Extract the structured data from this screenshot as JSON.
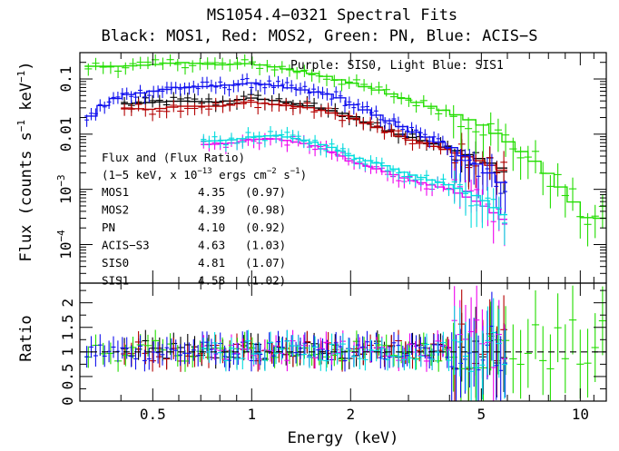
{
  "chart_data": {
    "type": "scatter",
    "title": "MS1054.4−0321 Spectral Fits",
    "subtitle": "Black: MOS1, Red: MOS2, Green: PN, Blue: ACIS−S",
    "annotation_sis": "Purple: SIS0, Light Blue: SIS1",
    "xlabel": "Energy (keV)",
    "xscale": "log",
    "xlim": [
      0.3,
      12
    ],
    "x_ticks": [
      0.5,
      1,
      2,
      5,
      10
    ],
    "x_tick_labels": [
      "0.5",
      "1",
      "2",
      "5",
      "10"
    ],
    "top_panel": {
      "ylabel": "Flux (counts s⁻¹ keV⁻¹)",
      "ylabel_main": "Flux (counts s",
      "ylabel_mid": " keV",
      "ylabel_end": ")",
      "ylabel_exp": "−1",
      "yscale": "log",
      "ylim": [
        2e-05,
        0.3
      ],
      "y_ticks": [
        0.0001,
        0.001,
        0.01,
        0.1
      ],
      "y_tick_labels": [
        {
          "text": "10",
          "sup": "−4"
        },
        {
          "text": "10",
          "sup": "−3"
        },
        {
          "text": "0.01",
          "sup": ""
        },
        {
          "text": "0.1",
          "sup": ""
        }
      ]
    },
    "bottom_panel": {
      "ylabel": "Ratio",
      "ylim": [
        0,
        2.4
      ],
      "y_ticks": [
        0,
        0.5,
        1,
        1.5,
        2
      ],
      "y_tick_labels": [
        "0",
        "0.5",
        "1",
        "1.5",
        "2"
      ],
      "reference_line": 1
    },
    "flux_table": {
      "heading": "Flux and (Flux Ratio)",
      "units_pre": "(1−5 keV, x 10",
      "units_exp1": "−13",
      "units_mid": " ergs cm",
      "units_exp2": "−2",
      "units_mid2": " s",
      "units_exp3": "−1",
      "units_end": ")",
      "rows": [
        {
          "name": "MOS1",
          "flux": "4.35",
          "ratio": "(0.97)"
        },
        {
          "name": "MOS2",
          "flux": "4.39",
          "ratio": "(0.98)"
        },
        {
          "name": "PN",
          "flux": "4.10",
          "ratio": "(0.92)"
        },
        {
          "name": "ACIS−S3",
          "flux": "4.63",
          "ratio": "(1.03)"
        },
        {
          "name": "SIS0",
          "flux": "4.81",
          "ratio": "(1.07)"
        },
        {
          "name": "SIS1",
          "flux": "4.58",
          "ratio": "(1.02)"
        }
      ]
    },
    "series": [
      {
        "id": "MOS1",
        "color": "#000000",
        "xmin": 0.4,
        "xmax": 6.0,
        "points": [
          [
            0.4,
            0.035
          ],
          [
            0.6,
            0.04
          ],
          [
            0.8,
            0.038
          ],
          [
            1.0,
            0.045
          ],
          [
            1.3,
            0.038
          ],
          [
            1.6,
            0.03
          ],
          [
            2.0,
            0.022
          ],
          [
            2.5,
            0.012
          ],
          [
            3.0,
            0.009
          ],
          [
            4.0,
            0.0055
          ],
          [
            5.0,
            0.0035
          ],
          [
            6.0,
            0.0022
          ]
        ],
        "ratio": [
          [
            0.5,
            0.95
          ],
          [
            0.8,
            1.05
          ],
          [
            1.2,
            1.0
          ],
          [
            1.8,
            0.95
          ],
          [
            2.5,
            1.1
          ],
          [
            4.0,
            1.0
          ]
        ]
      },
      {
        "id": "MOS2",
        "color": "#b40000",
        "xmin": 0.4,
        "xmax": 6.0,
        "points": [
          [
            0.4,
            0.03
          ],
          [
            0.5,
            0.028
          ],
          [
            0.6,
            0.032
          ],
          [
            0.8,
            0.032
          ],
          [
            1.0,
            0.038
          ],
          [
            1.2,
            0.034
          ],
          [
            1.5,
            0.03
          ],
          [
            2.0,
            0.02
          ],
          [
            2.5,
            0.012
          ],
          [
            3.0,
            0.008
          ],
          [
            4.0,
            0.005
          ],
          [
            5.0,
            0.0032
          ],
          [
            6.0,
            0.002
          ]
        ],
        "ratio": [
          [
            0.45,
            0.9
          ],
          [
            0.55,
            1.0
          ],
          [
            0.7,
            0.85
          ],
          [
            1.0,
            1.1
          ],
          [
            1.5,
            1.0
          ],
          [
            2.2,
            0.9
          ],
          [
            3.5,
            1.05
          ]
        ]
      },
      {
        "id": "PN",
        "color": "#22dd00",
        "xmin": 0.31,
        "xmax": 12.0,
        "points": [
          [
            0.32,
            0.17
          ],
          [
            0.4,
            0.17
          ],
          [
            0.5,
            0.18
          ],
          [
            0.6,
            0.2
          ],
          [
            0.8,
            0.18
          ],
          [
            1.0,
            0.19
          ],
          [
            1.3,
            0.15
          ],
          [
            1.6,
            0.12
          ],
          [
            2.0,
            0.085
          ],
          [
            2.5,
            0.06
          ],
          [
            3.0,
            0.042
          ],
          [
            4.0,
            0.025
          ],
          [
            5.0,
            0.015
          ],
          [
            6.0,
            0.0075
          ],
          [
            7.5,
            0.0028
          ],
          [
            9.0,
            0.0009
          ],
          [
            10.5,
            0.0003
          ]
        ],
        "ratio": [
          [
            0.35,
            1.05
          ],
          [
            0.5,
            1.0
          ],
          [
            0.8,
            0.95
          ],
          [
            1.2,
            1.05
          ],
          [
            2.0,
            0.95
          ],
          [
            3.5,
            1.1
          ],
          [
            6.0,
            0.6
          ],
          [
            8.0,
            0.3
          ],
          [
            10.5,
            0.4
          ]
        ]
      },
      {
        "id": "ACIS-S",
        "color": "#1010ee",
        "xmin": 0.31,
        "xmax": 6.0,
        "points": [
          [
            0.32,
            0.02
          ],
          [
            0.35,
            0.032
          ],
          [
            0.4,
            0.05
          ],
          [
            0.5,
            0.06
          ],
          [
            0.6,
            0.07
          ],
          [
            0.8,
            0.075
          ],
          [
            1.0,
            0.085
          ],
          [
            1.2,
            0.075
          ],
          [
            1.5,
            0.06
          ],
          [
            1.8,
            0.05
          ],
          [
            2.0,
            0.035
          ],
          [
            2.5,
            0.02
          ],
          [
            3.0,
            0.012
          ],
          [
            4.0,
            0.006
          ],
          [
            5.0,
            0.0025
          ],
          [
            6.0,
            0.0011
          ]
        ],
        "ratio": [
          [
            0.33,
            0.6
          ],
          [
            0.4,
            1.2
          ],
          [
            0.5,
            0.9
          ],
          [
            0.7,
            1.1
          ],
          [
            1.0,
            1.0
          ],
          [
            1.5,
            0.95
          ],
          [
            2.0,
            1.1
          ],
          [
            3.0,
            0.9
          ],
          [
            4.0,
            1.2
          ],
          [
            5.0,
            0.8
          ]
        ]
      },
      {
        "id": "SIS0",
        "color": "#ee00ee",
        "xmin": 0.7,
        "xmax": 6.0,
        "points": [
          [
            0.75,
            0.0065
          ],
          [
            0.9,
            0.007
          ],
          [
            1.0,
            0.008
          ],
          [
            1.2,
            0.0082
          ],
          [
            1.5,
            0.0065
          ],
          [
            1.8,
            0.0045
          ],
          [
            2.0,
            0.0032
          ],
          [
            2.5,
            0.0022
          ],
          [
            3.0,
            0.0015
          ],
          [
            4.0,
            0.001
          ],
          [
            5.0,
            0.00055
          ],
          [
            6.0,
            0.00025
          ]
        ],
        "ratio": [
          [
            0.8,
            0.7
          ],
          [
            1.2,
            1.0
          ],
          [
            1.8,
            1.2
          ],
          [
            2.5,
            0.9
          ],
          [
            3.5,
            1.05
          ],
          [
            5.0,
            0.8
          ]
        ]
      },
      {
        "id": "SIS1",
        "color": "#00dddd",
        "xmin": 0.7,
        "xmax": 6.0,
        "points": [
          [
            0.75,
            0.0075
          ],
          [
            0.9,
            0.008
          ],
          [
            1.0,
            0.009
          ],
          [
            1.2,
            0.0095
          ],
          [
            1.5,
            0.0075
          ],
          [
            1.8,
            0.0055
          ],
          [
            2.0,
            0.004
          ],
          [
            2.5,
            0.0028
          ],
          [
            3.0,
            0.0019
          ],
          [
            4.0,
            0.0012
          ],
          [
            5.0,
            0.0007
          ],
          [
            6.0,
            0.0003
          ]
        ],
        "ratio": [
          [
            0.8,
            1.1
          ],
          [
            1.2,
            1.05
          ],
          [
            1.8,
            0.9
          ],
          [
            2.5,
            1.15
          ],
          [
            3.5,
            1.0
          ],
          [
            5.0,
            1.2
          ]
        ]
      }
    ]
  }
}
